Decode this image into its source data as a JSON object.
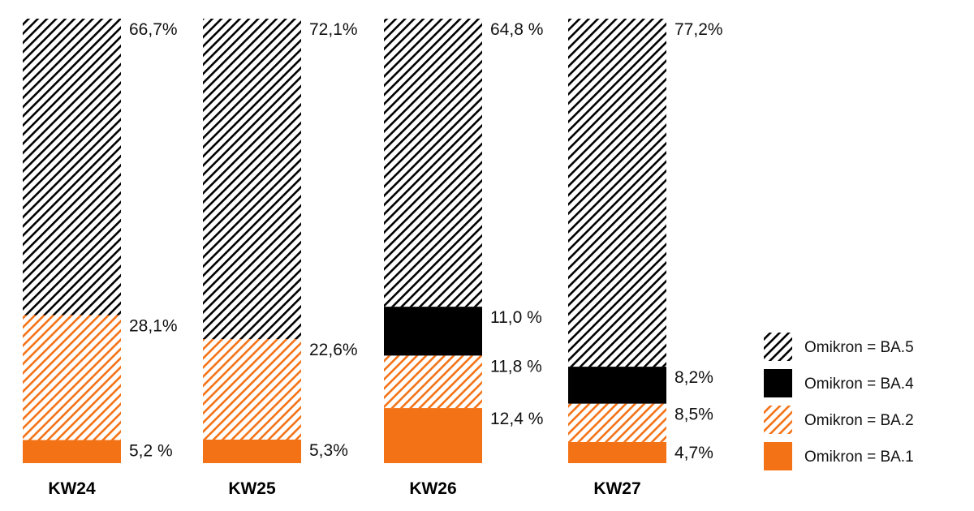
{
  "colors": {
    "ba5": "#000000",
    "ba4": "#000000",
    "ba2": "#f47216",
    "ba1": "#f47216",
    "background": "#ffffff"
  },
  "chart_data": {
    "type": "bar",
    "stacked": true,
    "normalized_to_percent": true,
    "categories": [
      "KW24",
      "KW25",
      "KW26",
      "KW27"
    ],
    "series": [
      {
        "name": "Omikron = BA.1",
        "key": "ba1",
        "fill": "solid",
        "values": [
          5.2,
          5.3,
          12.4,
          4.7
        ],
        "labels": [
          "5,2 %",
          "5,3%",
          "12,4 %",
          "4,7%"
        ]
      },
      {
        "name": "Omikron = BA.2",
        "key": "ba2",
        "fill": "hatched",
        "values": [
          28.1,
          22.6,
          11.8,
          8.5
        ],
        "labels": [
          "28,1%",
          "22,6%",
          "11,8 %",
          "8,5%"
        ]
      },
      {
        "name": "Omikron = BA.4",
        "key": "ba4",
        "fill": "solid",
        "values": [
          0,
          0,
          11.0,
          8.2
        ],
        "labels": [
          "",
          "",
          "11,0 %",
          "8,2%"
        ]
      },
      {
        "name": "Omikron = BA.5",
        "key": "ba5",
        "fill": "hatched",
        "values": [
          66.7,
          72.1,
          64.8,
          77.2
        ],
        "labels": [
          "66,7%",
          "72,1%",
          "64,8 %",
          "77,2%"
        ]
      }
    ],
    "legend": {
      "placement": "right",
      "order": [
        "ba5",
        "ba4",
        "ba2",
        "ba1"
      ]
    }
  }
}
